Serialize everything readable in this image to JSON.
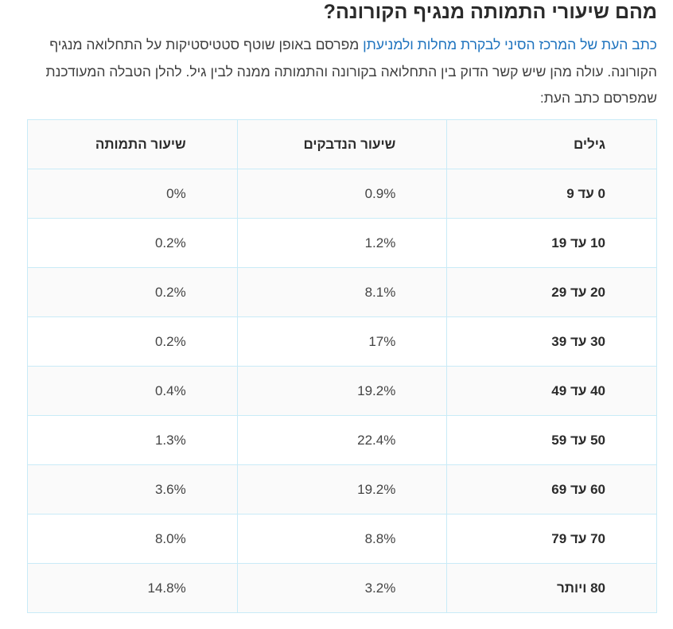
{
  "title": "מהם שיעורי התמותה מנגיף הקורונה?",
  "intro": {
    "link_text": "כתב העת של המרכז הסיני לבקרת מחלות ולמניעתן",
    "rest_text": " מפרסם באופן שוטף סטטיסטיקות על התחלואה מנגיף הקורונה. עולה מהן שיש קשר הדוק בין התחלואה בקורונה והתמותה ממנה לבין גיל. להלן הטבלה המעודכנת שמפרסם כתב העת:"
  },
  "table": {
    "headers": [
      "גילים",
      "שיעור הנדבקים",
      "שיעור התמותה"
    ],
    "rows": [
      {
        "age": "0 עד 9",
        "infected": "0.9%",
        "mortality": "0%"
      },
      {
        "age": "10 עד 19",
        "infected": "1.2%",
        "mortality": "0.2%"
      },
      {
        "age": "20 עד 29",
        "infected": "8.1%",
        "mortality": "0.2%"
      },
      {
        "age": "30 עד 39",
        "infected": "17%",
        "mortality": "0.2%"
      },
      {
        "age": "40 עד 49",
        "infected": "19.2%",
        "mortality": "0.4%"
      },
      {
        "age": "50 עד 59",
        "infected": "22.4%",
        "mortality": "1.3%"
      },
      {
        "age": "60 עד 69",
        "infected": "19.2%",
        "mortality": "3.6%"
      },
      {
        "age": "70 עד 79",
        "infected": "8.8%",
        "mortality": "8.0%"
      },
      {
        "age": "80 ויותר",
        "infected": "3.2%",
        "mortality": "14.8%"
      }
    ]
  }
}
